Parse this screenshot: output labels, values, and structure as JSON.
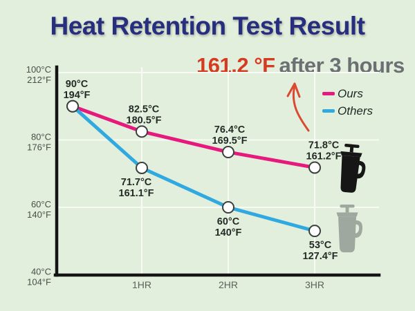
{
  "title": "Heat Retention Test Result",
  "callout": {
    "value": "161.2 °F",
    "caption": "after 3 hours"
  },
  "legend": [
    {
      "label": "Ours",
      "color": "#e6197c"
    },
    {
      "label": "Others",
      "color": "#30a9e0"
    }
  ],
  "icons": {
    "ours": "black-carafe-icon",
    "others": "gray-french-press-icon",
    "arrow": "red-hand-drawn-arrow"
  },
  "colors": {
    "background": "#e2efdc",
    "title": "#272e7e",
    "callout_value": "#d53b20",
    "callout_caption": "#6c7072",
    "axis": "#141414",
    "grid": "#f7fbf4",
    "tick_label": "#474f49",
    "point_label": "#242b27",
    "arrow": "#d94a30",
    "icon_ours": "#161616",
    "icon_others": "#9fa89f"
  },
  "chart_data": {
    "type": "line",
    "x_hours": [
      0,
      1,
      2,
      3
    ],
    "x_tick_labels": [
      "",
      "1HR",
      "2HR",
      "3HR"
    ],
    "ylim": [
      40,
      100
    ],
    "grid": true,
    "legend_position": "top-right",
    "y_ticks": [
      {
        "value": 100,
        "celsius": "100°C",
        "fahrenheit": "212°F"
      },
      {
        "value": 80,
        "celsius": "80°C",
        "fahrenheit": "176°F"
      },
      {
        "value": 60,
        "celsius": "60°C",
        "fahrenheit": "140°F"
      },
      {
        "value": 40,
        "celsius": "40°C",
        "fahrenheit": "104°F"
      }
    ],
    "series": [
      {
        "name": "Ours",
        "color": "#e6197c",
        "values_celsius": [
          90,
          82.5,
          76.4,
          71.8
        ],
        "label_pos": "above",
        "point_labels": [
          {
            "celsius": "90°C",
            "fahrenheit": "194°F",
            "dx": 6
          },
          {
            "celsius": "82.5°C",
            "fahrenheit": "180.5°F",
            "dx": 3
          },
          {
            "celsius": "76.4°C",
            "fahrenheit": "169.5°F",
            "dx": 2
          },
          {
            "celsius": "71.8°C",
            "fahrenheit": "161.2°F",
            "dx": 13
          }
        ]
      },
      {
        "name": "Others",
        "color": "#30a9e0",
        "values_celsius": [
          90,
          71.7,
          60,
          53
        ],
        "label_pos": "below",
        "point_labels": [
          null,
          {
            "celsius": "71.7°C",
            "fahrenheit": "161.1°F",
            "dx": -8
          },
          {
            "celsius": "60°C",
            "fahrenheit": "140°F",
            "dx": 0
          },
          {
            "celsius": "53°C",
            "fahrenheit": "127.4°F",
            "dx": 8
          }
        ]
      }
    ]
  }
}
